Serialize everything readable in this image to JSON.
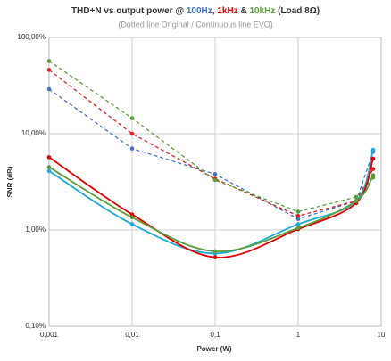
{
  "chart_data": {
    "type": "line",
    "title_parts": [
      "THD+N vs output  power @ ",
      "100Hz",
      ", ",
      "1kHz",
      " & ",
      "10kHz",
      " (Load 8Ω)"
    ],
    "title_colors": [
      "#333333",
      "#4472c4",
      "#333333",
      "#e00000",
      "#333333",
      "#5a9e3a",
      "#333333"
    ],
    "subtitle": "(Dotted line Original / Continuous line EVO)",
    "xlabel": "Power (W)",
    "ylabel": "SNR (dB)",
    "x": [
      0.001,
      0.01,
      0.1,
      1,
      5,
      8
    ],
    "series": [
      {
        "color": "#4472c4",
        "style": "dashed",
        "values": [
          29,
          7.0,
          3.8,
          1.3,
          2.0,
          6.5
        ]
      },
      {
        "color": "#e02020",
        "style": "dashed",
        "values": [
          46,
          10,
          3.4,
          1.4,
          2.0,
          4.3
        ]
      },
      {
        "color": "#5a9e3a",
        "style": "dashed",
        "values": [
          57,
          14.5,
          3.3,
          1.55,
          2.2,
          3.5
        ]
      },
      {
        "color": "#1fa8d8",
        "style": "solid",
        "values": [
          4.1,
          1.15,
          0.57,
          1.15,
          2.0,
          6.8
        ]
      },
      {
        "color": "#e00000",
        "style": "solid",
        "values": [
          5.7,
          1.45,
          0.52,
          1.02,
          1.9,
          5.5
        ]
      },
      {
        "color": "#5a9e3a",
        "style": "solid",
        "values": [
          4.5,
          1.35,
          0.6,
          1.05,
          2.0,
          3.7
        ]
      }
    ],
    "xscale": "log",
    "yscale": "log",
    "xlim": [
      0.001,
      10
    ],
    "ylim": [
      0.1,
      100
    ],
    "xticks": [
      {
        "value": 0.001,
        "label": "0,001"
      },
      {
        "value": 0.01,
        "label": "0,01"
      },
      {
        "value": 0.1,
        "label": "0,1"
      },
      1,
      10
    ],
    "yticks": [
      {
        "value": 0.1,
        "label": "0,10%"
      },
      {
        "value": 1,
        "label": "1,00%"
      },
      {
        "value": 10,
        "label": "10,00%"
      },
      {
        "value": 100,
        "label": "100,00%"
      }
    ],
    "grid": true
  }
}
